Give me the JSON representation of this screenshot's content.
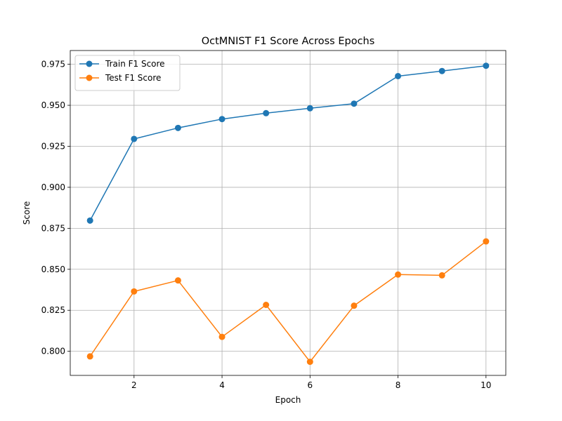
{
  "chart_data": {
    "type": "line",
    "title": "OctMNIST F1 Score Across Epochs",
    "xlabel": "Epoch",
    "ylabel": "Score",
    "xlim": [
      0.55,
      10.45
    ],
    "ylim": [
      0.7853,
      0.9834
    ],
    "xticks": [
      2,
      4,
      6,
      8,
      10
    ],
    "yticks": [
      0.8,
      0.825,
      0.85,
      0.875,
      0.9,
      0.925,
      0.95,
      0.975
    ],
    "grid": true,
    "legend_position": "upper-left",
    "x": [
      1,
      2,
      3,
      4,
      5,
      6,
      7,
      8,
      9,
      10
    ],
    "series": [
      {
        "name": "Train F1 Score",
        "color": "#1f77b4",
        "marker": "circle",
        "values": [
          0.8797,
          0.9295,
          0.9362,
          0.9416,
          0.9452,
          0.9482,
          0.951,
          0.9678,
          0.9709,
          0.9741
        ]
      },
      {
        "name": "Test F1 Score",
        "color": "#ff7f0e",
        "marker": "circle",
        "values": [
          0.7969,
          0.8365,
          0.8432,
          0.8088,
          0.8283,
          0.7936,
          0.8278,
          0.8468,
          0.8463,
          0.867
        ]
      }
    ]
  }
}
